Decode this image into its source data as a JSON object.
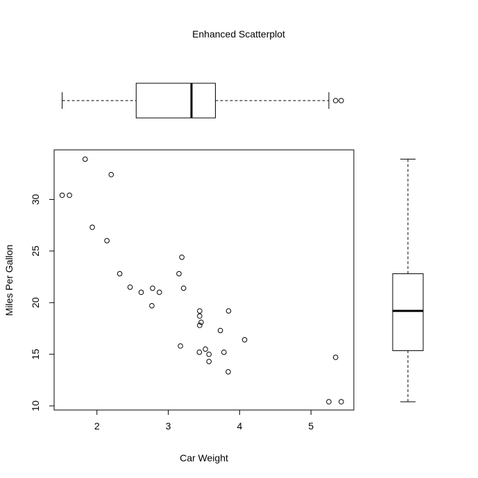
{
  "chart_data": {
    "type": "scatter",
    "title": "Enhanced Scatterplot",
    "xlabel": "Car Weight",
    "ylabel": "Miles Per Gallon",
    "xlim": [
      1.4,
      5.6
    ],
    "ylim": [
      9.6,
      34.8
    ],
    "xticks": [
      2,
      3,
      4,
      5
    ],
    "yticks": [
      10,
      15,
      20,
      25,
      30
    ],
    "points": [
      [
        2.62,
        21.0
      ],
      [
        2.875,
        21.0
      ],
      [
        2.32,
        22.8
      ],
      [
        3.215,
        21.4
      ],
      [
        3.44,
        18.7
      ],
      [
        3.46,
        18.1
      ],
      [
        3.57,
        14.3
      ],
      [
        3.19,
        24.4
      ],
      [
        3.15,
        22.8
      ],
      [
        3.44,
        19.2
      ],
      [
        3.44,
        17.8
      ],
      [
        4.07,
        16.4
      ],
      [
        3.73,
        17.3
      ],
      [
        3.78,
        15.2
      ],
      [
        5.25,
        10.4
      ],
      [
        5.424,
        10.4
      ],
      [
        5.345,
        14.7
      ],
      [
        2.2,
        32.4
      ],
      [
        1.615,
        30.4
      ],
      [
        1.835,
        33.9
      ],
      [
        2.465,
        21.5
      ],
      [
        3.52,
        15.5
      ],
      [
        3.435,
        15.2
      ],
      [
        3.84,
        13.3
      ],
      [
        3.845,
        19.2
      ],
      [
        1.935,
        27.3
      ],
      [
        2.14,
        26.0
      ],
      [
        1.513,
        30.4
      ],
      [
        3.17,
        15.8
      ],
      [
        2.77,
        19.7
      ],
      [
        3.57,
        15.0
      ],
      [
        2.78,
        21.4
      ]
    ],
    "boxplot_x": {
      "min": 1.513,
      "q1": 2.55,
      "median": 3.325,
      "q3": 3.66,
      "max": 5.25,
      "outliers": [
        5.345,
        5.424
      ]
    },
    "boxplot_y": {
      "min": 10.4,
      "q1": 15.35,
      "median": 19.2,
      "q3": 22.8,
      "max": 33.9,
      "outliers": []
    },
    "grid": false
  }
}
